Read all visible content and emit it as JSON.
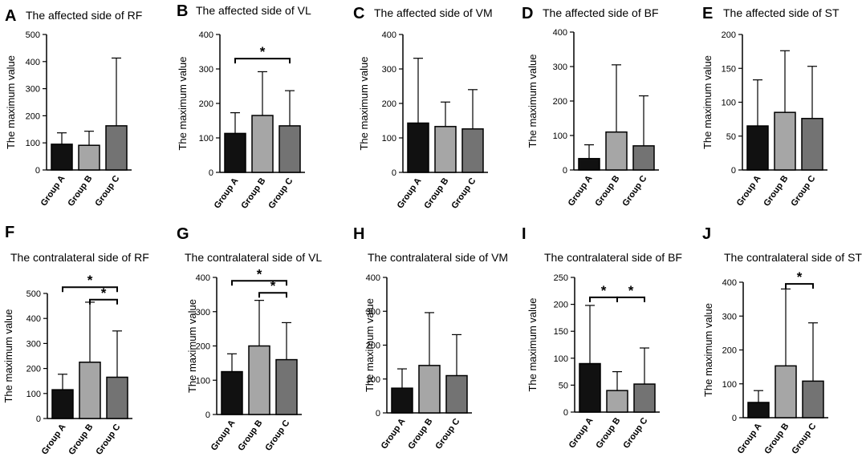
{
  "chart_data": [
    {
      "letter": "A",
      "type": "bar",
      "title": "The affected side of RF",
      "ylabel": "The maximum  value",
      "categories": [
        "Group A",
        "Group B",
        "Group C"
      ],
      "values": [
        95,
        91,
        163
      ],
      "error": [
        42,
        52,
        250
      ],
      "yticks": [
        0,
        100,
        200,
        300,
        400,
        500
      ],
      "ylim": [
        0,
        500
      ],
      "colors": [
        "#111111",
        "#a6a6a6",
        "#737373"
      ],
      "significance": []
    },
    {
      "letter": "B",
      "type": "bar",
      "title": "The affected side of VL",
      "ylabel": "The maximum  value",
      "categories": [
        "Group A",
        "Group B",
        "Group C"
      ],
      "values": [
        113,
        165,
        135
      ],
      "error": [
        60,
        127,
        102
      ],
      "yticks": [
        0,
        100,
        200,
        300,
        400
      ],
      "ylim": [
        0,
        400
      ],
      "colors": [
        "#111111",
        "#a6a6a6",
        "#737373"
      ],
      "significance": [
        {
          "from": 0,
          "to": 2,
          "label": "*",
          "y": 330
        }
      ]
    },
    {
      "letter": "C",
      "type": "bar",
      "title": "The affected side of VM",
      "ylabel": "The maximum  value",
      "categories": [
        "Group A",
        "Group B",
        "Group C"
      ],
      "values": [
        143,
        133,
        126
      ],
      "error": [
        188,
        71,
        114
      ],
      "yticks": [
        0,
        100,
        200,
        300,
        400
      ],
      "ylim": [
        0,
        400
      ],
      "colors": [
        "#111111",
        "#a6a6a6",
        "#737373"
      ],
      "significance": []
    },
    {
      "letter": "D",
      "type": "bar",
      "title": "The affected side of BF",
      "ylabel": "The maximum value",
      "categories": [
        "Group A",
        "Group B",
        "Group C"
      ],
      "values": [
        33,
        110,
        70
      ],
      "error": [
        40,
        195,
        145
      ],
      "yticks": [
        0,
        100,
        200,
        300,
        400
      ],
      "ylim": [
        0,
        400
      ],
      "colors": [
        "#111111",
        "#a6a6a6",
        "#737373"
      ],
      "significance": []
    },
    {
      "letter": "E",
      "type": "bar",
      "title": "The affected side of ST",
      "ylabel": "The maximum value",
      "categories": [
        "Group A",
        "Group B",
        "Group C"
      ],
      "values": [
        65,
        85,
        76
      ],
      "error": [
        68,
        91,
        77
      ],
      "yticks": [
        0,
        50,
        100,
        150,
        200
      ],
      "ylim": [
        0,
        200
      ],
      "colors": [
        "#111111",
        "#a6a6a6",
        "#737373"
      ],
      "significance": []
    },
    {
      "letter": "F",
      "type": "bar",
      "title": "The contralateral side of RF",
      "ylabel": "The maximum  value",
      "categories": [
        "Group A",
        "Group B",
        "Group C"
      ],
      "values": [
        115,
        225,
        165
      ],
      "error": [
        62,
        240,
        185
      ],
      "yticks": [
        0,
        100,
        200,
        300,
        400,
        500
      ],
      "ylim": [
        0,
        500
      ],
      "colors": [
        "#111111",
        "#a6a6a6",
        "#737373"
      ],
      "significance": [
        {
          "from": 0,
          "to": 2,
          "label": "*",
          "y": 525
        },
        {
          "from": 1,
          "to": 2,
          "label": "*",
          "y": 475
        }
      ]
    },
    {
      "letter": "G",
      "type": "bar",
      "title": "The contralateral side of VL",
      "ylabel": "The maximum  value",
      "categories": [
        "Group A",
        "Group B",
        "Group C"
      ],
      "values": [
        125,
        200,
        160
      ],
      "error": [
        52,
        133,
        108
      ],
      "yticks": [
        0,
        100,
        200,
        300,
        400
      ],
      "ylim": [
        0,
        400
      ],
      "colors": [
        "#111111",
        "#a6a6a6",
        "#737373"
      ],
      "significance": [
        {
          "from": 0,
          "to": 2,
          "label": "*",
          "y": 390
        },
        {
          "from": 1,
          "to": 2,
          "label": "*",
          "y": 355
        }
      ]
    },
    {
      "letter": "H",
      "type": "bar",
      "title": "The contralateral side of VM",
      "ylabel": "The maximum value",
      "categories": [
        "Group A",
        "Group B",
        "Group C"
      ],
      "values": [
        73,
        140,
        110
      ],
      "error": [
        57,
        156,
        121
      ],
      "yticks": [
        0,
        100,
        200,
        300,
        400
      ],
      "ylim": [
        0,
        400
      ],
      "colors": [
        "#111111",
        "#a6a6a6",
        "#737373"
      ],
      "significance": []
    },
    {
      "letter": "I",
      "type": "bar",
      "title": "The contralateral side of BF",
      "ylabel": "The maximum  value",
      "categories": [
        "Group A",
        "Group B",
        "Group C"
      ],
      "values": [
        90,
        40,
        52
      ],
      "error": [
        108,
        35,
        67
      ],
      "yticks": [
        0,
        50,
        100,
        150,
        200,
        250
      ],
      "ylim": [
        0,
        250
      ],
      "colors": [
        "#111111",
        "#a6a6a6",
        "#737373"
      ],
      "significance": [
        {
          "from": 0,
          "to": 1,
          "label": "*",
          "y": 213
        },
        {
          "from": 1,
          "to": 2,
          "label": "*",
          "y": 213
        }
      ]
    },
    {
      "letter": "J",
      "type": "bar",
      "title": "The contralateral side of ST",
      "ylabel": "The maximum  value",
      "categories": [
        "Group A",
        "Group B",
        "Group C"
      ],
      "values": [
        45,
        153,
        108
      ],
      "error": [
        35,
        227,
        172
      ],
      "yticks": [
        0,
        100,
        200,
        300,
        400
      ],
      "ylim": [
        0,
        400
      ],
      "colors": [
        "#111111",
        "#a6a6a6",
        "#737373"
      ],
      "significance": [
        {
          "from": 1,
          "to": 2,
          "label": "*",
          "y": 395
        }
      ]
    }
  ]
}
